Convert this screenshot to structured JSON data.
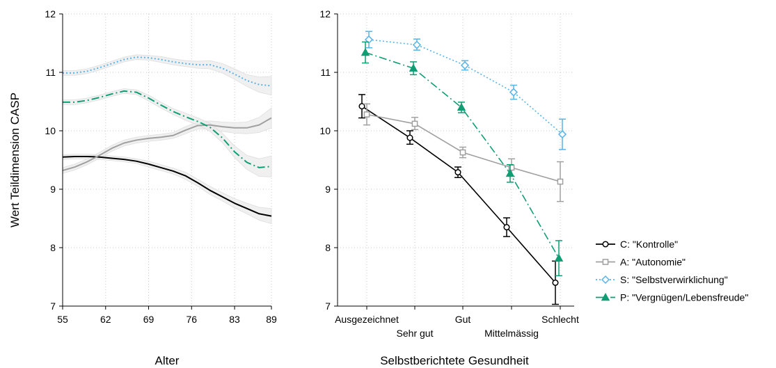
{
  "colors": {
    "kontrolle": "#000000",
    "autonomie": "#a0a0a0",
    "selbstverwirklichung": "#56b4e9",
    "vergnuegen": "#0f9e74",
    "ci_band": "#ebebeb"
  },
  "legend": {
    "placement": "right",
    "items": [
      {
        "label": "C: \"Kontrolle\"",
        "color": "#000000",
        "marker": "circle",
        "dash": "solid"
      },
      {
        "label": "A: \"Autonomie\"",
        "color": "#a0a0a0",
        "marker": "square",
        "dash": "solid"
      },
      {
        "label": "S: \"Selbstverwirklichung\"",
        "color": "#56b4e9",
        "marker": "diamond",
        "dash": "dot"
      },
      {
        "label": "P: \"Vergnügen/Lebensfreude\"",
        "color": "#0f9e74",
        "marker": "triangle",
        "dash": "dashdot"
      }
    ]
  },
  "chart_data": [
    {
      "type": "line",
      "xlabel": "Alter",
      "ylabel": "Wert Teildimension CASP",
      "xlim": [
        55,
        89
      ],
      "ylim": [
        7,
        12
      ],
      "xticks": [
        55,
        62,
        69,
        76,
        83,
        89
      ],
      "yticks": [
        7,
        8,
        9,
        10,
        11,
        12
      ],
      "grid": true,
      "series": [
        {
          "key": "kontrolle",
          "x": [
            55,
            57,
            59,
            61,
            63,
            65,
            67,
            69,
            71,
            73,
            75,
            77,
            79,
            81,
            83,
            85,
            87,
            89
          ],
          "values": [
            9.55,
            9.56,
            9.56,
            9.55,
            9.53,
            9.51,
            9.48,
            9.43,
            9.37,
            9.31,
            9.23,
            9.11,
            8.98,
            8.87,
            8.76,
            8.67,
            8.58,
            8.54
          ],
          "ci": [
            0.04,
            0.04,
            0.04,
            0.04,
            0.04,
            0.04,
            0.04,
            0.05,
            0.05,
            0.05,
            0.06,
            0.06,
            0.07,
            0.07,
            0.08,
            0.09,
            0.11,
            0.13
          ]
        },
        {
          "key": "autonomie",
          "x": [
            55,
            57,
            59,
            61,
            63,
            65,
            67,
            69,
            71,
            73,
            75,
            77,
            79,
            81,
            83,
            85,
            87,
            89
          ],
          "values": [
            9.32,
            9.38,
            9.47,
            9.58,
            9.7,
            9.79,
            9.84,
            9.87,
            9.89,
            9.92,
            10.01,
            10.09,
            10.1,
            10.07,
            10.05,
            10.05,
            10.1,
            10.22
          ],
          "ci": [
            0.05,
            0.05,
            0.05,
            0.05,
            0.05,
            0.05,
            0.05,
            0.05,
            0.05,
            0.05,
            0.06,
            0.06,
            0.07,
            0.08,
            0.09,
            0.1,
            0.13,
            0.17
          ]
        },
        {
          "key": "selbstverwirklichung",
          "x": [
            55,
            57,
            59,
            61,
            63,
            65,
            67,
            69,
            71,
            73,
            75,
            77,
            79,
            81,
            83,
            85,
            87,
            89
          ],
          "values": [
            10.99,
            10.99,
            11.02,
            11.08,
            11.15,
            11.22,
            11.26,
            11.25,
            11.22,
            11.18,
            11.15,
            11.13,
            11.13,
            11.07,
            10.97,
            10.86,
            10.79,
            10.77
          ],
          "ci": [
            0.04,
            0.04,
            0.04,
            0.04,
            0.04,
            0.04,
            0.04,
            0.04,
            0.05,
            0.05,
            0.05,
            0.06,
            0.07,
            0.08,
            0.09,
            0.1,
            0.13,
            0.16
          ]
        },
        {
          "key": "vergnuegen",
          "x": [
            55,
            57,
            59,
            61,
            63,
            65,
            67,
            69,
            71,
            73,
            75,
            77,
            79,
            81,
            83,
            85,
            87,
            89
          ],
          "values": [
            10.49,
            10.49,
            10.52,
            10.57,
            10.63,
            10.68,
            10.66,
            10.56,
            10.44,
            10.33,
            10.24,
            10.16,
            10.06,
            9.88,
            9.64,
            9.46,
            9.37,
            9.39
          ],
          "ci": [
            0.04,
            0.04,
            0.04,
            0.04,
            0.04,
            0.04,
            0.04,
            0.05,
            0.05,
            0.05,
            0.06,
            0.06,
            0.07,
            0.08,
            0.1,
            0.12,
            0.15,
            0.18
          ]
        }
      ]
    },
    {
      "type": "line",
      "xlabel": "Selbstberichtete Gesundheit",
      "ylabel": "",
      "categories": [
        "Ausgezeichnet",
        "Sehr gut",
        "Gut",
        "Mittelmässig",
        "Schlecht"
      ],
      "ylim": [
        7,
        12
      ],
      "yticks": [
        7,
        8,
        9,
        10,
        11,
        12
      ],
      "grid": true,
      "series": [
        {
          "key": "kontrolle",
          "values": [
            10.42,
            9.88,
            9.29,
            8.35,
            7.4
          ],
          "lower": [
            10.22,
            9.77,
            9.2,
            8.19,
            7.03
          ],
          "upper": [
            10.62,
            10.0,
            9.38,
            8.51,
            7.77
          ]
        },
        {
          "key": "autonomie",
          "values": [
            10.28,
            10.12,
            9.63,
            9.37,
            9.13
          ],
          "lower": [
            10.1,
            10.02,
            9.54,
            9.22,
            8.79
          ],
          "upper": [
            10.46,
            10.23,
            9.72,
            9.52,
            9.47
          ]
        },
        {
          "key": "selbstverwirklichung",
          "values": [
            11.56,
            11.47,
            11.12,
            10.66,
            9.94
          ],
          "lower": [
            11.42,
            11.38,
            11.04,
            10.54,
            9.68
          ],
          "upper": [
            11.7,
            11.57,
            11.2,
            10.78,
            10.2
          ]
        },
        {
          "key": "vergnuegen",
          "values": [
            11.34,
            11.07,
            10.4,
            9.27,
            7.82
          ],
          "lower": [
            11.16,
            10.96,
            10.31,
            9.12,
            7.52
          ],
          "upper": [
            11.52,
            11.18,
            10.49,
            9.42,
            8.12
          ]
        }
      ]
    }
  ]
}
